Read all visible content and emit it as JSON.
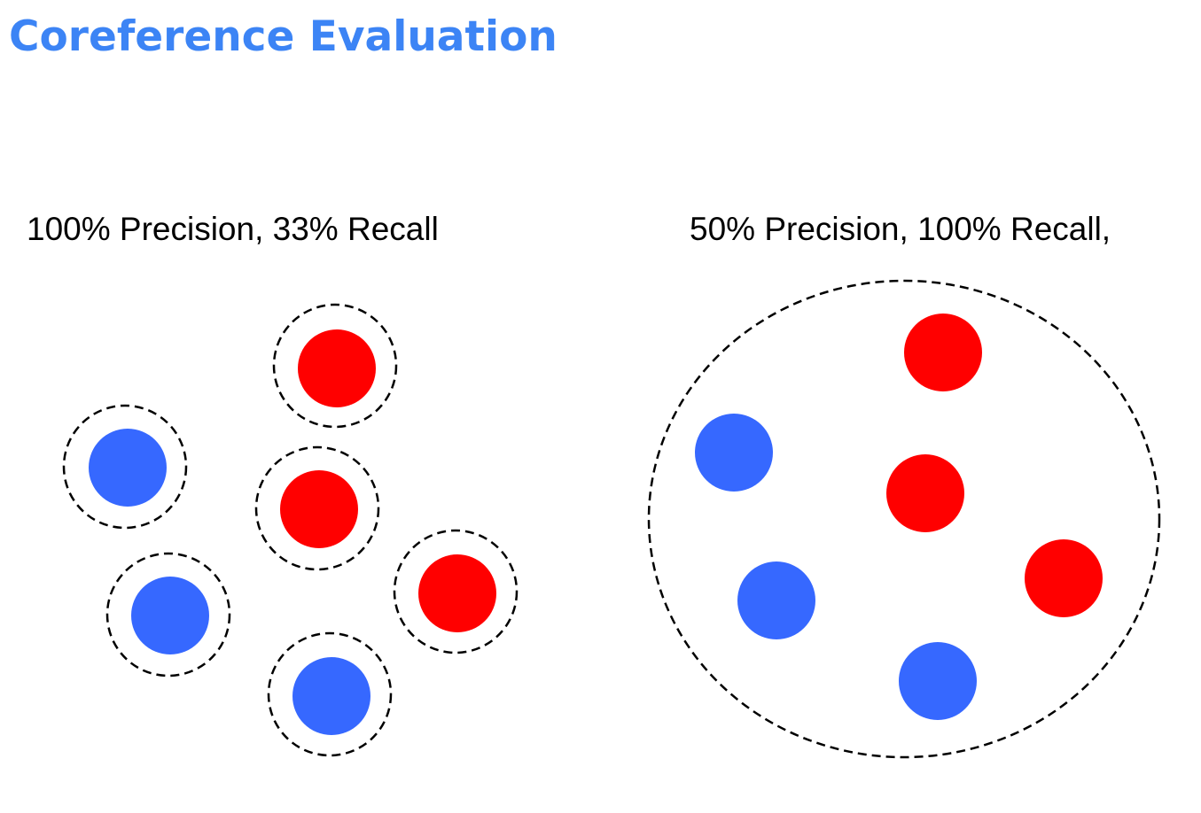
{
  "title": "Coreference Evaluation",
  "panels": [
    {
      "caption": "100% Precision, 33% Recall"
    },
    {
      "caption": "50% Precision, 100% Recall,"
    }
  ],
  "colors": {
    "title": "#3c84f5",
    "red_mention": "#ff0000",
    "blue_mention": "#3668ff",
    "ring": "#000000"
  }
}
